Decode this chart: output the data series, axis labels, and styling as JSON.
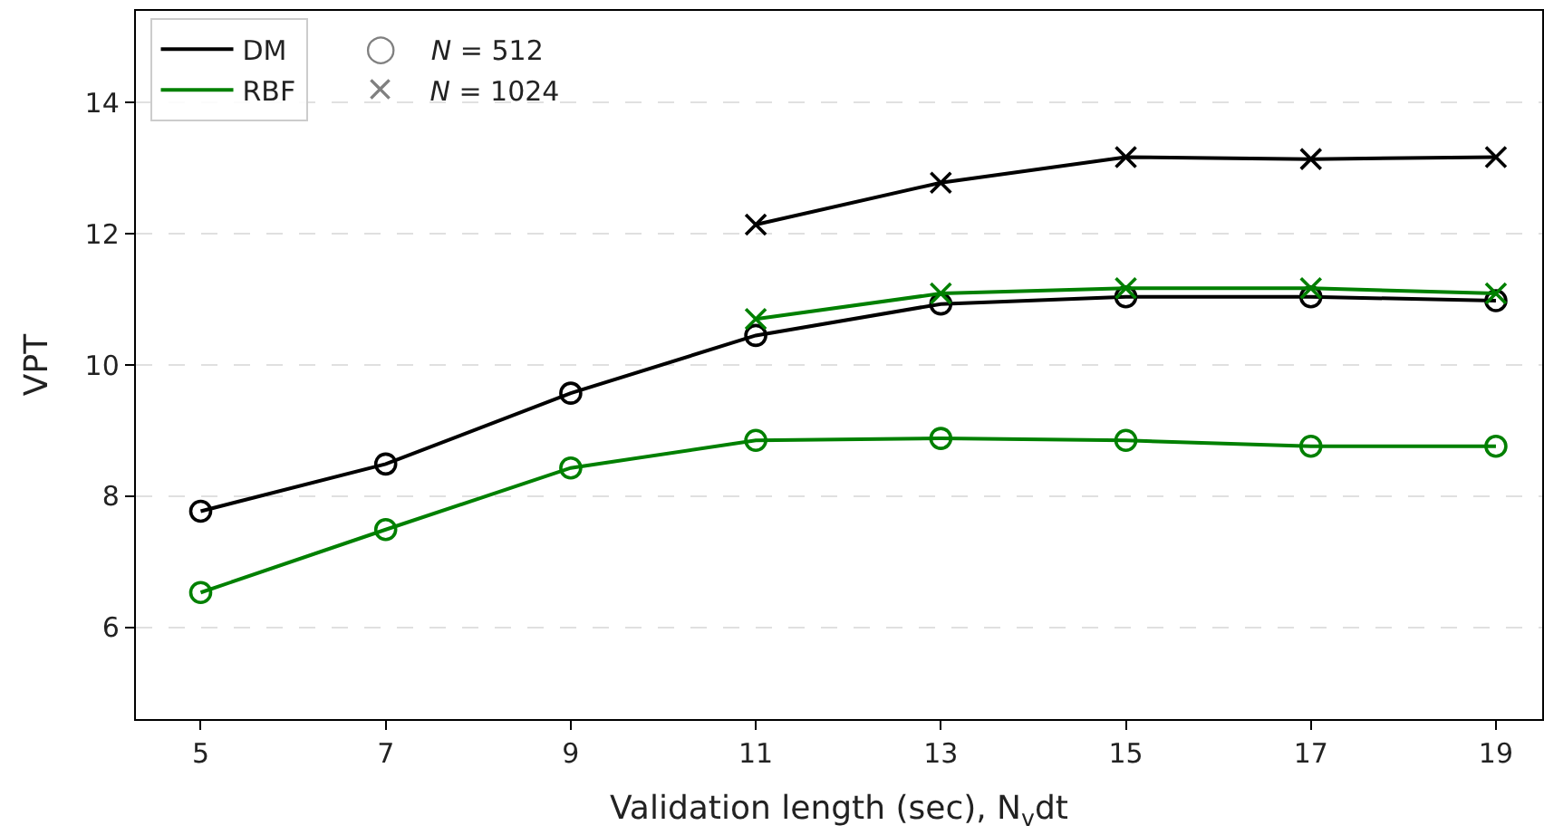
{
  "chart_data": {
    "type": "line",
    "xlabel": "Validation length (sec), N$_{v}$dt",
    "ylabel": "VPT",
    "xlim": [
      4.3,
      19.5
    ],
    "xticks": [
      5,
      7,
      9,
      11,
      13,
      15,
      17,
      19
    ],
    "ylim": [
      4.6,
      15.4
    ],
    "yticks": [
      6,
      8,
      10,
      12,
      14
    ],
    "grid": "y",
    "legend": "top left",
    "annotations": [
      "○ N = 512",
      "× N = 1024"
    ],
    "series": [
      {
        "name": "DM",
        "color": "#000000",
        "marker": "circle",
        "x": [
          5,
          7,
          9,
          11,
          13,
          15,
          17,
          19
        ],
        "values": [
          7.77,
          8.49,
          9.57,
          10.45,
          10.93,
          11.04,
          11.04,
          10.98
        ]
      },
      {
        "color": "#000000",
        "marker": "cross",
        "x": [
          11,
          13,
          15,
          17,
          19
        ],
        "values": [
          12.14,
          12.78,
          13.17,
          13.14,
          13.17
        ]
      },
      {
        "name": "RBF",
        "color": "#008000",
        "marker": "circle",
        "x": [
          5,
          7,
          9,
          11,
          13,
          15,
          17,
          19
        ],
        "values": [
          6.53,
          7.49,
          8.43,
          8.85,
          8.88,
          8.85,
          8.76,
          8.76
        ]
      },
      {
        "color": "#008000",
        "marker": "cross",
        "x": [
          11,
          13,
          15,
          17,
          19
        ],
        "values": [
          10.7,
          11.09,
          11.17,
          11.17,
          11.09
        ]
      }
    ]
  }
}
